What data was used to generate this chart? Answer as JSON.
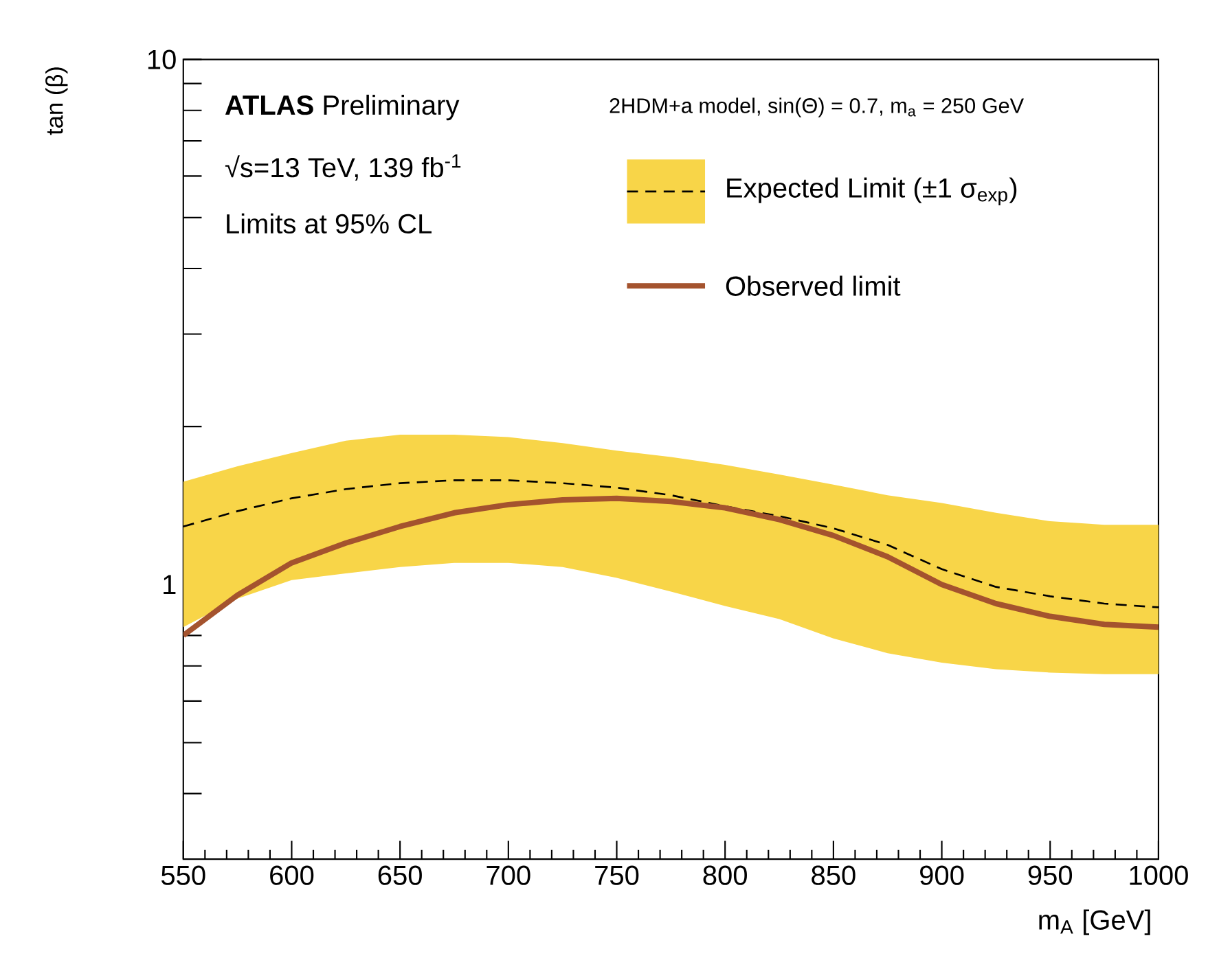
{
  "chart_data": {
    "type": "line",
    "xlabel": "m$_{A}$ [GeV]",
    "ylabel": "tan (β)",
    "annotations": [
      "**ATLAS** Preliminary",
      "√s=13 TeV, 139 fb$^{-1}$",
      "Limits at 95% CL",
      "2HDM+a model, sin(Θ) = 0.7, m$_{a}$ = 250 GeV"
    ],
    "x": [
      550,
      575,
      600,
      625,
      650,
      675,
      700,
      725,
      750,
      775,
      800,
      825,
      850,
      875,
      900,
      925,
      950,
      975,
      1000
    ],
    "series": [
      {
        "name": "Expected Limit (±1 σ$_{exp}$)",
        "color": "#000000",
        "line_style": "dashed",
        "values": [
          1.29,
          1.38,
          1.46,
          1.52,
          1.56,
          1.58,
          1.58,
          1.56,
          1.53,
          1.48,
          1.41,
          1.35,
          1.28,
          1.19,
          1.07,
          0.99,
          0.95,
          0.92,
          0.905
        ],
        "lower": [
          0.83,
          0.94,
          1.02,
          1.05,
          1.08,
          1.1,
          1.1,
          1.08,
          1.03,
          0.97,
          0.91,
          0.86,
          0.79,
          0.74,
          0.71,
          0.69,
          0.68,
          0.675,
          0.675
        ],
        "upper": [
          1.57,
          1.68,
          1.78,
          1.88,
          1.93,
          1.93,
          1.91,
          1.86,
          1.8,
          1.75,
          1.69,
          1.62,
          1.55,
          1.48,
          1.43,
          1.37,
          1.32,
          1.3,
          1.3
        ]
      },
      {
        "name": "Observed limit",
        "color": "#a4532e",
        "line_style": "solid",
        "values": [
          0.8,
          0.955,
          1.1,
          1.2,
          1.29,
          1.37,
          1.42,
          1.45,
          1.46,
          1.44,
          1.4,
          1.33,
          1.24,
          1.13,
          1.0,
          0.92,
          0.87,
          0.84,
          0.83
        ]
      }
    ],
    "xlim": [
      550,
      1000
    ],
    "ylim": [
      0.3,
      10
    ],
    "log": "y",
    "xticks": [
      550,
      600,
      650,
      700,
      750,
      800,
      850,
      900,
      950,
      1000
    ],
    "yticks": [
      {
        "value": 0.4,
        "label": null
      },
      {
        "value": 0.5,
        "label": null
      },
      {
        "value": 0.6,
        "label": null
      },
      {
        "value": 0.7,
        "label": null
      },
      {
        "value": 0.8,
        "label": null
      },
      {
        "value": 0.9,
        "label": null
      },
      1,
      {
        "value": 2,
        "label": null
      },
      {
        "value": 3,
        "label": null
      },
      {
        "value": 4,
        "label": null
      },
      {
        "value": 5,
        "label": null
      },
      {
        "value": 6,
        "label": null
      },
      {
        "value": 7,
        "label": null
      },
      {
        "value": 8,
        "label": null
      },
      {
        "value": 9,
        "label": null
      },
      10
    ],
    "legend": "top right"
  }
}
